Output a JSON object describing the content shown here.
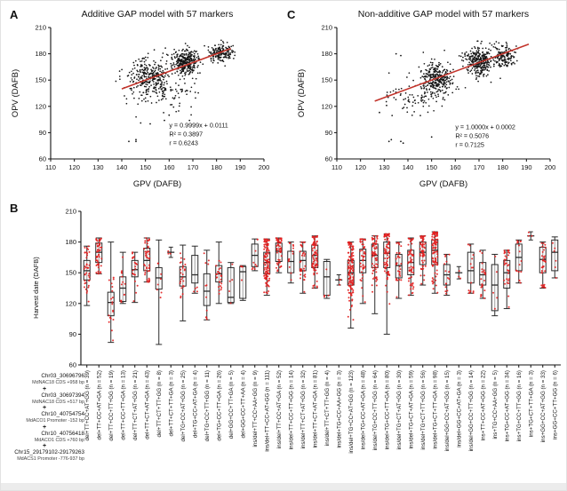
{
  "figure": {
    "panels": {
      "A": {
        "letter": "A",
        "title": "Additive GAP model with 57 markers",
        "xlabel": "GPV (DAFB)",
        "ylabel": "OPV (DAFB)",
        "annotation_lines": [
          "y = 0.9999x + 0.0111",
          "R² = 0.3897",
          "r = 0.6243"
        ]
      },
      "C": {
        "letter": "C",
        "title": "Non-additive GAP model with 57 markers",
        "xlabel": "GPV (DAFB)",
        "ylabel": "OPV (DAFB)",
        "annotation_lines": [
          "y = 1.0000x + 0.0002",
          "R² = 0.5076",
          "r = 0.7125"
        ]
      },
      "B": {
        "letter": "B",
        "ylabel": "Harvest date (DAFB)",
        "separator": "+",
        "marker_stack": [
          {
            "name": "Chr03_30696796",
            "desc": "MdNAC18 CDS +958 bp"
          },
          {
            "name": "Chr03_30697394",
            "desc": "MdNAC18 CDS +517 bp"
          },
          {
            "name": "Chr10_40754754",
            "desc": "MdACO1 Promoter -152 bp"
          },
          {
            "name": "Chr10_40756418",
            "desc": "MdACO1 CDS +760 bp"
          },
          {
            "name": "Chr15_29179102-29179263",
            "desc": "MdACS1 Promoter -776-937 bp"
          }
        ]
      }
    },
    "colors": {
      "scatter_point": "#161616",
      "regression_line": "#c3342b",
      "box_stroke": "#2a2a2a",
      "box_point": "#e21f1f",
      "axis": "#111111"
    }
  },
  "chart_data": [
    {
      "id": "A",
      "type": "scatter",
      "title": "Additive GAP model with 57 markers",
      "xlabel": "GPV (DAFB)",
      "ylabel": "OPV (DAFB)",
      "xlim": [
        110,
        200
      ],
      "ylim": [
        60,
        210
      ],
      "xticks": [
        110,
        120,
        130,
        140,
        150,
        160,
        170,
        180,
        190,
        200
      ],
      "yticks": [
        60,
        90,
        120,
        150,
        180,
        210
      ],
      "stats": {
        "slope": 0.9999,
        "intercept": 0.0111,
        "R2": 0.3897,
        "r": 0.6243
      },
      "regression_line": {
        "x1": 140,
        "y1": 140.0,
        "x2": 186,
        "y2": 186.0
      },
      "annotation_xy": [
        160,
        96
      ],
      "clusters": [
        {
          "cx": 152,
          "cy": 153,
          "sx": 4.5,
          "sy": 11,
          "n": 300
        },
        {
          "cx": 167,
          "cy": 172,
          "sx": 2.8,
          "sy": 7,
          "n": 300
        },
        {
          "cx": 182,
          "cy": 181,
          "sx": 2.6,
          "sy": 5,
          "n": 170
        },
        {
          "cx": 158,
          "cy": 132,
          "sx": 8,
          "sy": 10,
          "n": 80
        }
      ],
      "outliers": [
        [
          143,
          80
        ],
        [
          146,
          80
        ],
        [
          146,
          82
        ],
        [
          152,
          100
        ],
        [
          158,
          104
        ],
        [
          160,
          110
        ],
        [
          148,
          101
        ],
        [
          145,
          170
        ],
        [
          150,
          176
        ]
      ]
    },
    {
      "id": "C",
      "type": "scatter",
      "title": "Non-additive GAP model with 57 markers",
      "xlabel": "GPV (DAFB)",
      "ylabel": "OPV (DAFB)",
      "xlim": [
        110,
        200
      ],
      "ylim": [
        60,
        210
      ],
      "xticks": [
        110,
        120,
        130,
        140,
        150,
        160,
        170,
        180,
        190,
        200
      ],
      "yticks": [
        60,
        90,
        120,
        150,
        180,
        210
      ],
      "stats": {
        "slope": 1.0,
        "intercept": 0.0002,
        "R2": 0.5076,
        "r": 0.7125
      },
      "regression_line": {
        "x1": 126,
        "y1": 126.0,
        "x2": 191,
        "y2": 191.0
      },
      "annotation_xy": [
        160,
        94
      ],
      "clusters": [
        {
          "cx": 152,
          "cy": 151,
          "sx": 3.5,
          "sy": 10,
          "n": 320
        },
        {
          "cx": 170,
          "cy": 172,
          "sx": 3.0,
          "sy": 8,
          "n": 300
        },
        {
          "cx": 181,
          "cy": 177,
          "sx": 2.2,
          "sy": 7,
          "n": 140
        },
        {
          "cx": 140,
          "cy": 128,
          "sx": 6,
          "sy": 9,
          "n": 60
        }
      ],
      "outliers": [
        [
          132,
          80
        ],
        [
          133,
          82
        ],
        [
          137,
          80
        ],
        [
          138,
          78
        ],
        [
          150,
          85
        ],
        [
          128,
          113
        ],
        [
          131,
          121
        ],
        [
          135,
          180
        ],
        [
          137,
          178
        ]
      ]
    },
    {
      "id": "B",
      "type": "box",
      "ylabel": "Harvest date (DAFB)",
      "ylim": [
        60,
        210
      ],
      "yticks": [
        60,
        90,
        120,
        150,
        180,
        210
      ],
      "categories": [
        {
          "genotype": "del+TT+CC+AT+GG",
          "n": 39,
          "lo": 118,
          "q1": 143,
          "med": 152,
          "q3": 162,
          "hi": 176
        },
        {
          "genotype": "del+TT+CC+AT+GA",
          "n": 52,
          "lo": 149,
          "q1": 160,
          "med": 170,
          "q3": 179,
          "hi": 184
        },
        {
          "genotype": "del+TT+CC+TT+GG",
          "n": 19,
          "lo": 82,
          "q1": 108,
          "med": 121,
          "q3": 131,
          "hi": 180
        },
        {
          "genotype": "del+TT+CC+TT+GA",
          "n": 13,
          "lo": 120,
          "q1": 122,
          "med": 135,
          "q3": 146,
          "hi": 170
        },
        {
          "genotype": "del+TT+CT+AT+GG",
          "n": 21,
          "lo": 121,
          "q1": 146,
          "med": 153,
          "q3": 162,
          "hi": 170
        },
        {
          "genotype": "del+TT+CT+AT+GA",
          "n": 43,
          "lo": 141,
          "q1": 152,
          "med": 162,
          "q3": 174,
          "hi": 184
        },
        {
          "genotype": "del+TT+CT+TT+GG",
          "n": 8,
          "lo": 80,
          "q1": 134,
          "med": 145,
          "q3": 155,
          "hi": 182
        },
        {
          "genotype": "del+TT+CT+TT+GA",
          "n": 3,
          "lo": 165,
          "q1": null,
          "med": 170,
          "q3": null,
          "hi": 175
        },
        {
          "genotype": "del+TG+CC+AT+GG",
          "n": 25,
          "lo": 103,
          "q1": 137,
          "med": 146,
          "q3": 156,
          "hi": 177
        },
        {
          "genotype": "del+TG+CC+AT+GA",
          "n": 4,
          "lo": 130,
          "q1": 140,
          "med": 148,
          "q3": 167,
          "hi": 176
        },
        {
          "genotype": "del+TG+CC+TT+GG",
          "n": 11,
          "lo": 104,
          "q1": 118,
          "med": 132,
          "q3": 149,
          "hi": 172
        },
        {
          "genotype": "del+TG+CC+TT+GA",
          "n": 26,
          "lo": 120,
          "q1": 141,
          "med": 149,
          "q3": 157,
          "hi": 180
        },
        {
          "genotype": "del+GG+CC+TT+GA",
          "n": 5,
          "lo": 120,
          "q1": 121,
          "med": 126,
          "q3": 155,
          "hi": 160
        },
        {
          "genotype": "del+GG+CC+TT+AA",
          "n": 4,
          "lo": 123,
          "q1": 125,
          "med": 151,
          "q3": 156,
          "hi": 157
        },
        {
          "genotype": "ins/del+TT+CC+AA+GG",
          "n": 9,
          "lo": 152,
          "q1": 156,
          "med": 167,
          "q3": 178,
          "hi": 183
        },
        {
          "genotype": "ins/del+TT+CC+AT+GG",
          "n": 111,
          "lo": 128,
          "q1": 149,
          "med": 160,
          "q3": 170,
          "hi": 183
        },
        {
          "genotype": "ins/del+TT+CC+AT+GA",
          "n": 52,
          "lo": 150,
          "q1": 161,
          "med": 171,
          "q3": 179,
          "hi": 184
        },
        {
          "genotype": "ins/del+TT+CC+TT+GG",
          "n": 14,
          "lo": 140,
          "q1": 150,
          "med": 161,
          "q3": 171,
          "hi": 180
        },
        {
          "genotype": "ins/del+TT+CT+AT+GG",
          "n": 32,
          "lo": 130,
          "q1": 152,
          "med": 162,
          "q3": 171,
          "hi": 180
        },
        {
          "genotype": "ins/del+TT+CT+AT+GA",
          "n": 81,
          "lo": 135,
          "q1": 155,
          "med": 167,
          "q3": 177,
          "hi": 186
        },
        {
          "genotype": "ins/del+TT+CT+TT+GG",
          "n": 4,
          "lo": 125,
          "q1": 128,
          "med": 146,
          "q3": 161,
          "hi": 163
        },
        {
          "genotype": "ins/del+TG+CC+AA+GG",
          "n": 3,
          "lo": 138,
          "q1": null,
          "med": 143,
          "q3": null,
          "hi": 148
        },
        {
          "genotype": "ins/del+TG+CC+AT+GG",
          "n": 123,
          "lo": 96,
          "q1": 138,
          "med": 150,
          "q3": 162,
          "hi": 180
        },
        {
          "genotype": "ins/del+TG+CC+AT+GA",
          "n": 48,
          "lo": 120,
          "q1": 150,
          "med": 162,
          "q3": 173,
          "hi": 183
        },
        {
          "genotype": "ins/del+TG+CC+TT+GG",
          "n": 64,
          "lo": 110,
          "q1": 155,
          "med": 167,
          "q3": 178,
          "hi": 186
        },
        {
          "genotype": "ins/del+TG+CC+TT+GA",
          "n": 80,
          "lo": 90,
          "q1": 155,
          "med": 169,
          "q3": 180,
          "hi": 188
        },
        {
          "genotype": "ins/del+TG+CT+AT+GG",
          "n": 30,
          "lo": 125,
          "q1": 145,
          "med": 157,
          "q3": 168,
          "hi": 180
        },
        {
          "genotype": "ins/del+TG+CT+AT+GA",
          "n": 59,
          "lo": 128,
          "q1": 148,
          "med": 160,
          "q3": 172,
          "hi": 184
        },
        {
          "genotype": "ins/del+TG+CT+TT+GG",
          "n": 56,
          "lo": 138,
          "q1": 158,
          "med": 170,
          "q3": 180,
          "hi": 186
        },
        {
          "genotype": "ins/del+TG+CT+TT+GA",
          "n": 98,
          "lo": 130,
          "q1": 158,
          "med": 172,
          "q3": 182,
          "hi": 190
        },
        {
          "genotype": "ins/del+GG+CC+AT+GG",
          "n": 15,
          "lo": 128,
          "q1": 138,
          "med": 148,
          "q3": 158,
          "hi": 168
        },
        {
          "genotype": "ins/del+GG+CC+AT+GA",
          "n": 3,
          "lo": 144,
          "q1": null,
          "med": 150,
          "q3": null,
          "hi": 156
        },
        {
          "genotype": "ins/del+GG+CC+TT+GG",
          "n": 14,
          "lo": 130,
          "q1": 140,
          "med": 152,
          "q3": 170,
          "hi": 178
        },
        {
          "genotype": "ins+TT+CC+AT+GG",
          "n": 22,
          "lo": 125,
          "q1": 138,
          "med": 148,
          "q3": 160,
          "hi": 172
        },
        {
          "genotype": "ins+TG+CC+AA+GG",
          "n": 5,
          "lo": 108,
          "q1": 113,
          "med": 138,
          "q3": 158,
          "hi": 168
        },
        {
          "genotype": "ins+TG+CC+AT+GG",
          "n": 34,
          "lo": 115,
          "q1": 135,
          "med": 150,
          "q3": 162,
          "hi": 172
        },
        {
          "genotype": "ins+TG+CC+TT+GG",
          "n": 16,
          "lo": 140,
          "q1": 152,
          "med": 165,
          "q3": 178,
          "hi": 182
        },
        {
          "genotype": "ins+TG+CT+TT+GA",
          "n": 3,
          "lo": 182,
          "q1": null,
          "med": 186,
          "q3": null,
          "hi": 190
        },
        {
          "genotype": "ins+GG+CC+AT+GG",
          "n": 33,
          "lo": 135,
          "q1": 150,
          "med": 163,
          "q3": 175,
          "hi": 180
        },
        {
          "genotype": "ins+GG+CC+TT+GG",
          "n": 6,
          "lo": 145,
          "q1": 152,
          "med": 170,
          "q3": 182,
          "hi": 185
        }
      ]
    }
  ]
}
